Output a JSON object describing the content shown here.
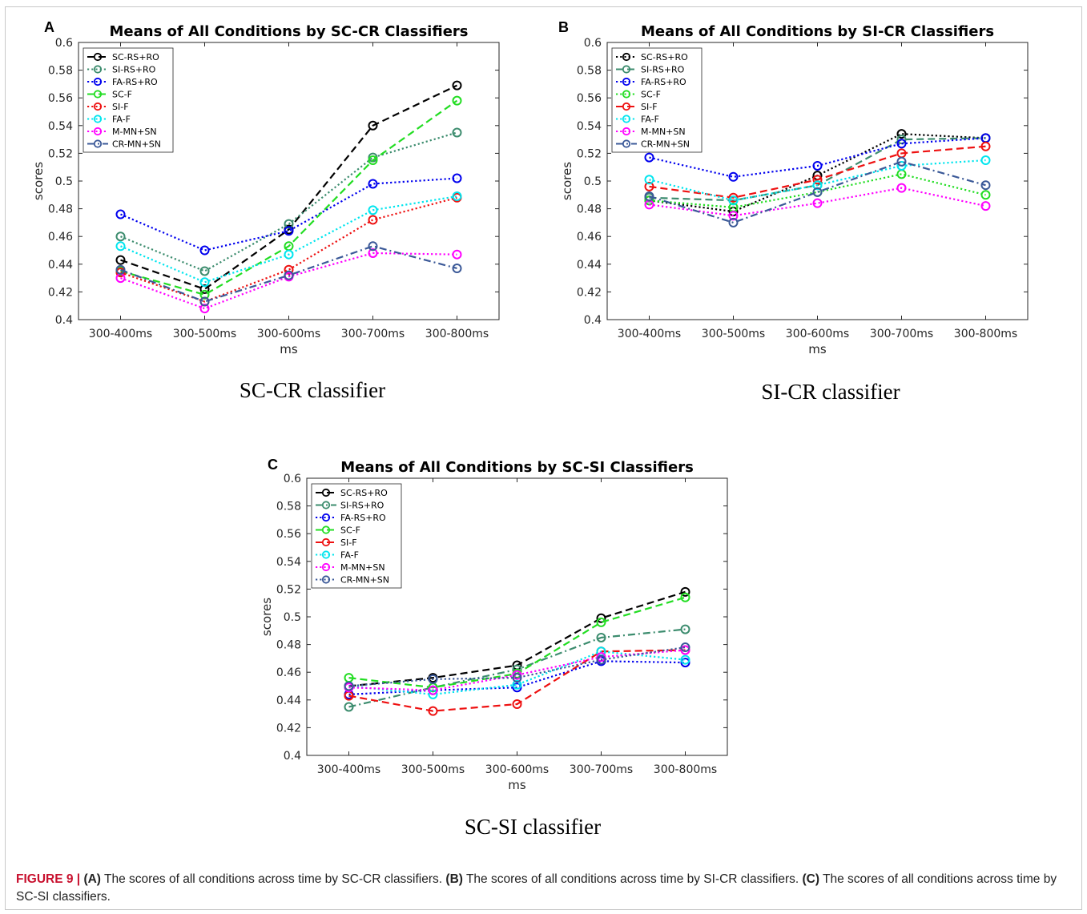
{
  "panels": [
    {
      "letter": "A",
      "sublabel": "SC-CR classifier"
    },
    {
      "letter": "B",
      "sublabel": "SI-CR classifier"
    },
    {
      "letter": "C",
      "sublabel": "SC-SI classifier"
    }
  ],
  "caption": {
    "label": "FIGURE 9 |",
    "parts": [
      {
        "tag": "(A)",
        "text": " The scores of all conditions across time by SC-CR classifiers. "
      },
      {
        "tag": "(B)",
        "text": " The scores of all conditions across time by SI-CR classifiers. "
      },
      {
        "tag": "(C)",
        "text": " The scores of all conditions across time by SC-SI classifiers."
      }
    ]
  },
  "chart_data": [
    {
      "type": "line",
      "title": "Means of All Conditions by SC-CR Classifiers",
      "xlabel": "ms",
      "ylabel": "scores",
      "categories": [
        "300-400ms",
        "300-500ms",
        "300-600ms",
        "300-700ms",
        "300-800ms"
      ],
      "ylim": [
        0.4,
        0.6
      ],
      "yticks": [
        "0.4",
        "0.42",
        "0.44",
        "0.46",
        "0.48",
        "0.5",
        "0.52",
        "0.54",
        "0.56",
        "0.58",
        "0.6"
      ],
      "legend_position": "top-left",
      "grid": false,
      "series": [
        {
          "name": "SC-RS+RO",
          "color": "#000000",
          "dash": "dashed",
          "values": [
            0.443,
            0.422,
            0.465,
            0.54,
            0.569
          ]
        },
        {
          "name": "SI-RS+RO",
          "color": "#3c8c6e",
          "dash": "dotted",
          "values": [
            0.46,
            0.435,
            0.469,
            0.517,
            0.535
          ]
        },
        {
          "name": "FA-RS+RO",
          "color": "#0000ee",
          "dash": "dotted",
          "values": [
            0.476,
            0.45,
            0.464,
            0.498,
            0.502
          ]
        },
        {
          "name": "SC-F",
          "color": "#22dd22",
          "dash": "dashed",
          "values": [
            0.435,
            0.418,
            0.453,
            0.515,
            0.558
          ]
        },
        {
          "name": "SI-F",
          "color": "#ee1111",
          "dash": "dotted",
          "values": [
            0.434,
            0.413,
            0.436,
            0.472,
            0.488
          ]
        },
        {
          "name": "FA-F",
          "color": "#00e5ee",
          "dash": "dotted",
          "values": [
            0.453,
            0.427,
            0.447,
            0.479,
            0.489
          ]
        },
        {
          "name": "M-MN+SN",
          "color": "#ff00ff",
          "dash": "dotted",
          "values": [
            0.43,
            0.408,
            0.431,
            0.448,
            0.447
          ]
        },
        {
          "name": "CR-MN+SN",
          "color": "#3b5998",
          "dash": "dashdot",
          "values": [
            0.436,
            0.413,
            0.432,
            0.453,
            0.437
          ]
        }
      ]
    },
    {
      "type": "line",
      "title": "Means of All Conditions by SI-CR Classifiers",
      "xlabel": "ms",
      "ylabel": "scores",
      "categories": [
        "300-400ms",
        "300-500ms",
        "300-600ms",
        "300-700ms",
        "300-800ms"
      ],
      "ylim": [
        0.4,
        0.6
      ],
      "yticks": [
        "0.4",
        "0.42",
        "0.44",
        "0.46",
        "0.48",
        "0.5",
        "0.52",
        "0.54",
        "0.56",
        "0.58",
        "0.6"
      ],
      "legend_position": "top-left",
      "grid": false,
      "series": [
        {
          "name": "SC-RS+RO",
          "color": "#000000",
          "dash": "dotted",
          "values": [
            0.486,
            0.478,
            0.504,
            0.534,
            0.531
          ]
        },
        {
          "name": "SI-RS+RO",
          "color": "#3c8c6e",
          "dash": "dashed",
          "values": [
            0.488,
            0.486,
            0.497,
            0.53,
            0.531
          ]
        },
        {
          "name": "FA-RS+RO",
          "color": "#0000ee",
          "dash": "dotted",
          "values": [
            0.517,
            0.503,
            0.511,
            0.527,
            0.531
          ]
        },
        {
          "name": "SC-F",
          "color": "#22dd22",
          "dash": "dotted",
          "values": [
            0.486,
            0.481,
            0.492,
            0.505,
            0.49
          ]
        },
        {
          "name": "SI-F",
          "color": "#ee1111",
          "dash": "dashed",
          "values": [
            0.496,
            0.488,
            0.501,
            0.52,
            0.525
          ]
        },
        {
          "name": "FA-F",
          "color": "#00e5ee",
          "dash": "dotted",
          "values": [
            0.501,
            0.486,
            0.497,
            0.511,
            0.515
          ]
        },
        {
          "name": "M-MN+SN",
          "color": "#ff00ff",
          "dash": "dotted",
          "values": [
            0.483,
            0.475,
            0.484,
            0.495,
            0.482
          ]
        },
        {
          "name": "CR-MN+SN",
          "color": "#3b5998",
          "dash": "dashdot",
          "values": [
            0.489,
            0.47,
            0.492,
            0.514,
            0.497
          ]
        }
      ]
    },
    {
      "type": "line",
      "title": "Means of All Conditions by SC-SI Classifiers",
      "xlabel": "ms",
      "ylabel": "scores",
      "categories": [
        "300-400ms",
        "300-500ms",
        "300-600ms",
        "300-700ms",
        "300-800ms"
      ],
      "ylim": [
        0.4,
        0.6
      ],
      "yticks": [
        "0.4",
        "0.42",
        "0.44",
        "0.46",
        "0.48",
        "0.5",
        "0.52",
        "0.54",
        "0.56",
        "0.58",
        "0.6"
      ],
      "legend_position": "top-left",
      "grid": false,
      "series": [
        {
          "name": "SC-RS+RO",
          "color": "#000000",
          "dash": "dashed",
          "values": [
            0.45,
            0.456,
            0.465,
            0.499,
            0.518
          ]
        },
        {
          "name": "SI-RS+RO",
          "color": "#3c8c6e",
          "dash": "dashdot",
          "values": [
            0.435,
            0.449,
            0.462,
            0.485,
            0.491
          ]
        },
        {
          "name": "FA-RS+RO",
          "color": "#0000ee",
          "dash": "dotted",
          "values": [
            0.444,
            0.447,
            0.449,
            0.468,
            0.467
          ]
        },
        {
          "name": "SC-F",
          "color": "#22dd22",
          "dash": "dashed",
          "values": [
            0.456,
            0.449,
            0.459,
            0.496,
            0.514
          ]
        },
        {
          "name": "SI-F",
          "color": "#ee1111",
          "dash": "dashed",
          "values": [
            0.443,
            0.432,
            0.437,
            0.475,
            0.476
          ]
        },
        {
          "name": "FA-F",
          "color": "#00e5ee",
          "dash": "dotted",
          "values": [
            0.45,
            0.444,
            0.451,
            0.475,
            0.469
          ]
        },
        {
          "name": "M-MN+SN",
          "color": "#ff00ff",
          "dash": "dotted",
          "values": [
            0.449,
            0.447,
            0.458,
            0.471,
            0.476
          ]
        },
        {
          "name": "CR-MN+SN",
          "color": "#3b5998",
          "dash": "dotted",
          "values": [
            0.45,
            0.455,
            0.456,
            0.469,
            0.478
          ]
        }
      ]
    }
  ]
}
